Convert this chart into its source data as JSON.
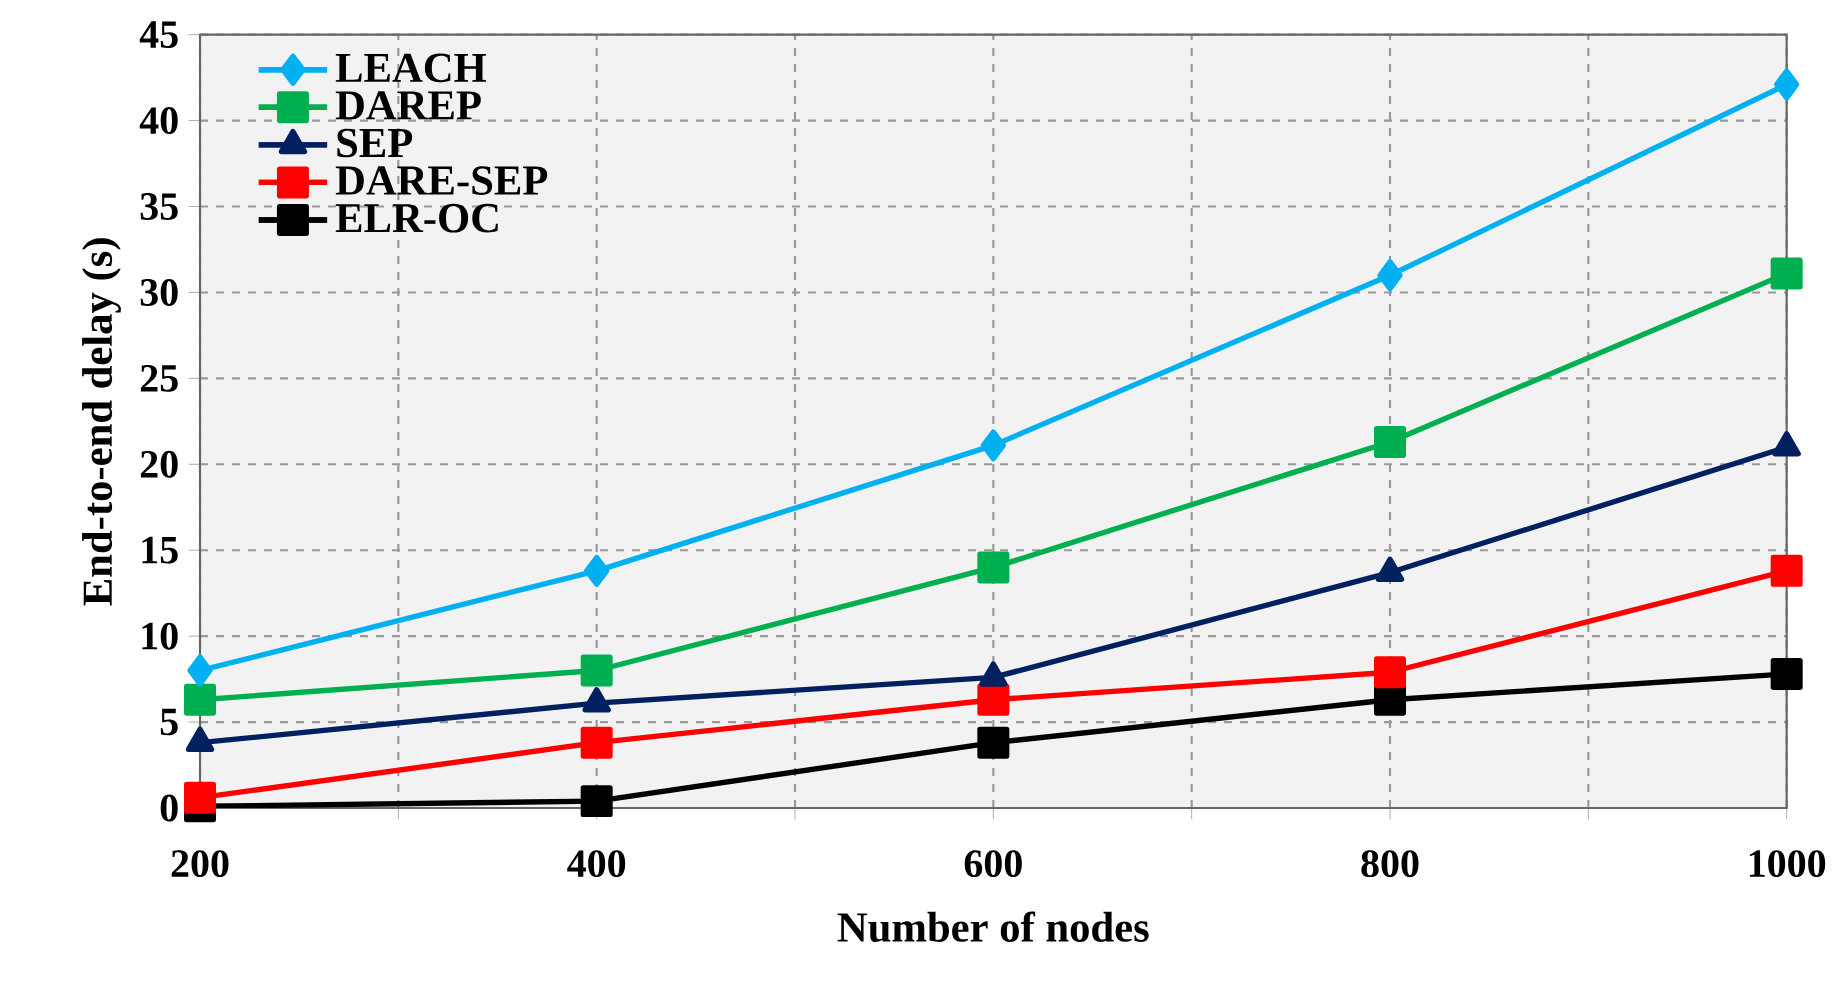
{
  "chart_data": {
    "type": "line",
    "xlabel": "Number of nodes",
    "ylabel": "End-to-end delay (s)",
    "x": [
      200,
      400,
      600,
      800,
      1000
    ],
    "series": [
      {
        "name": "LEACH",
        "color": "#00b0f0",
        "marker": "diamond",
        "values": [
          8.0,
          13.8,
          21.1,
          31.0,
          42.1
        ]
      },
      {
        "name": "DAREP",
        "color": "#00b050",
        "marker": "square",
        "values": [
          6.3,
          8.0,
          14.0,
          21.3,
          31.1
        ]
      },
      {
        "name": "SEP",
        "color": "#002060",
        "marker": "triangle",
        "values": [
          3.8,
          6.1,
          7.6,
          13.7,
          21.0
        ]
      },
      {
        "name": "DARE-SEP",
        "color": "#ff0000",
        "marker": "square",
        "values": [
          0.6,
          3.8,
          6.3,
          7.9,
          13.8
        ]
      },
      {
        "name": "ELR-OC",
        "color": "#000000",
        "marker": "square",
        "values": [
          0.1,
          0.4,
          3.8,
          6.3,
          7.8
        ]
      }
    ],
    "xlim": [
      200,
      1000
    ],
    "ylim": [
      0,
      45
    ],
    "xticks": [
      200,
      {
        "value": 300,
        "label": null
      },
      400,
      {
        "value": 500,
        "label": null
      },
      600,
      {
        "value": 700,
        "label": null
      },
      800,
      {
        "value": 900,
        "label": null
      },
      1000
    ],
    "yticks": [
      0,
      5,
      10,
      15,
      20,
      25,
      30,
      35,
      40,
      45
    ],
    "grid": true,
    "legend": "top left",
    "line_style": "solid"
  }
}
